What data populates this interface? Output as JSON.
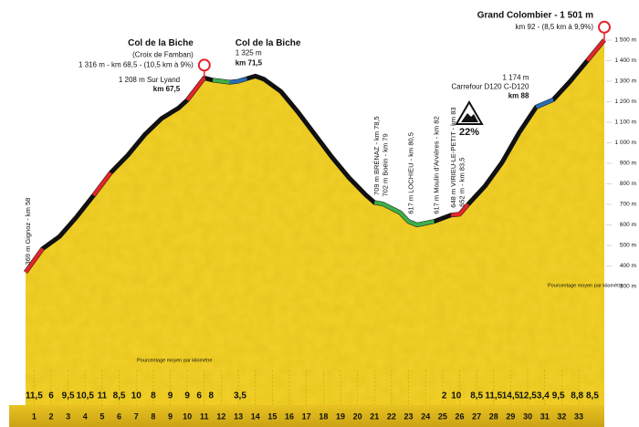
{
  "chart_data": {
    "type": "area",
    "color": "#f4d12a",
    "ridge_color": "#111111",
    "x": [
      0,
      1,
      2,
      3,
      4,
      5,
      6,
      7,
      8,
      9,
      9.5,
      10.5,
      11,
      12,
      12.5,
      13.5,
      14,
      15,
      16,
      17,
      18,
      19,
      20,
      20.5,
      21,
      22,
      22.5,
      23,
      24,
      25,
      25.5,
      26,
      27,
      28,
      29,
      30,
      31,
      32,
      33,
      34
    ],
    "values": [
      369,
      484,
      544,
      639,
      744,
      854,
      939,
      1039,
      1119,
      1170,
      1208,
      1316,
      1305,
      1295,
      1300,
      1325,
      1310,
      1250,
      1150,
      1040,
      930,
      830,
      745,
      709,
      702,
      660,
      617,
      600,
      617,
      648,
      652,
      700,
      790,
      905,
      1050,
      1174,
      1210,
      1300,
      1400,
      1501
    ],
    "xlim": [
      0,
      34
    ],
    "ylim": [
      300,
      1500
    ],
    "yticks": [
      {
        "value": 1500,
        "label": "1 500 m"
      },
      {
        "value": 1400,
        "label": "1 400 m"
      },
      {
        "value": 1300,
        "label": "1 300 m"
      },
      {
        "value": 1200,
        "label": "1 200 m"
      },
      {
        "value": 1100,
        "label": "1 100 m"
      },
      {
        "value": 1000,
        "label": "1 000 m"
      },
      {
        "value": 900,
        "label": "900 m"
      },
      {
        "value": 800,
        "label": "800 m"
      },
      {
        "value": 700,
        "label": "700 m"
      },
      {
        "value": 600,
        "label": "600 m"
      },
      {
        "value": 500,
        "label": "500 m"
      },
      {
        "value": 400,
        "label": "400 m"
      },
      {
        "value": 300,
        "label": "300 m"
      }
    ],
    "xticks": [
      {
        "value": 0.5,
        "label": "1"
      },
      {
        "value": 1.5,
        "label": "2"
      },
      {
        "value": 2.5,
        "label": "3"
      },
      {
        "value": 3.5,
        "label": "4"
      },
      {
        "value": 4.5,
        "label": "5"
      },
      {
        "value": 5.5,
        "label": "6"
      },
      {
        "value": 6.5,
        "label": "7"
      },
      {
        "value": 7.5,
        "label": "8"
      },
      {
        "value": 8.5,
        "label": "9"
      },
      {
        "value": 9.5,
        "label": "10"
      },
      {
        "value": 10.5,
        "label": "11"
      },
      {
        "value": 11.5,
        "label": "12"
      },
      {
        "value": 12.5,
        "label": "13"
      },
      {
        "value": 13.5,
        "label": "14"
      },
      {
        "value": 14.5,
        "label": "15"
      },
      {
        "value": 15.5,
        "label": "16"
      },
      {
        "value": 16.5,
        "label": "17"
      },
      {
        "value": 17.5,
        "label": "18"
      },
      {
        "value": 18.5,
        "label": "19"
      },
      {
        "value": 19.5,
        "label": "20"
      },
      {
        "value": 20.5,
        "label": "21"
      },
      {
        "value": 21.5,
        "label": "22"
      },
      {
        "value": 22.5,
        "label": "23"
      },
      {
        "value": 23.5,
        "label": "24"
      },
      {
        "value": 24.5,
        "label": "25"
      },
      {
        "value": 25.5,
        "label": "26"
      },
      {
        "value": 26.5,
        "label": "27"
      },
      {
        "value": 27.5,
        "label": "28"
      },
      {
        "value": 28.5,
        "label": "29"
      },
      {
        "value": 29.5,
        "label": "30"
      },
      {
        "value": 30.5,
        "label": "31"
      },
      {
        "value": 31.5,
        "label": "32"
      },
      {
        "value": 32.5,
        "label": "33"
      }
    ],
    "gradients": [
      {
        "km": 0.5,
        "label": "11,5"
      },
      {
        "km": 1.5,
        "label": "6"
      },
      {
        "km": 2.5,
        "label": "9,5"
      },
      {
        "km": 3.5,
        "label": "10,5"
      },
      {
        "km": 4.5,
        "label": "11"
      },
      {
        "km": 5.5,
        "label": "8,5"
      },
      {
        "km": 6.5,
        "label": "10"
      },
      {
        "km": 7.5,
        "label": "8"
      },
      {
        "km": 8.5,
        "label": "9"
      },
      {
        "km": 9.5,
        "label": "9"
      },
      {
        "km": 10.2,
        "label": "6"
      },
      {
        "km": 10.9,
        "label": "8"
      },
      {
        "km": 12.6,
        "label": "3,5"
      },
      {
        "km": 24.6,
        "label": "2"
      },
      {
        "km": 25.3,
        "label": "10"
      },
      {
        "km": 26.5,
        "label": "8,5"
      },
      {
        "km": 27.5,
        "label": "11,5"
      },
      {
        "km": 28.5,
        "label": "14,5"
      },
      {
        "km": 29.5,
        "label": "12,5"
      },
      {
        "km": 30.4,
        "label": "3,4"
      },
      {
        "km": 31.3,
        "label": "9,5"
      },
      {
        "km": 32.4,
        "label": "8,8"
      },
      {
        "km": 33.3,
        "label": "8,5"
      }
    ],
    "ridge_segments": [
      {
        "from": 0,
        "to": 1,
        "color": "#e3262b"
      },
      {
        "from": 4,
        "to": 5,
        "color": "#e3262b"
      },
      {
        "from": 9.5,
        "to": 10.5,
        "color": "#e3262b"
      },
      {
        "from": 11,
        "to": 12,
        "color": "#3fae49"
      },
      {
        "from": 12,
        "to": 13,
        "color": "#2a6db5"
      },
      {
        "from": 20.5,
        "to": 24,
        "color": "#3fae49"
      },
      {
        "from": 25,
        "to": 26,
        "color": "#e3262b"
      },
      {
        "from": 30,
        "to": 31,
        "color": "#2a6db5"
      },
      {
        "from": 33,
        "to": 34,
        "color": "#e3262b"
      }
    ],
    "annotations": [
      {
        "x": 0,
        "y": 369,
        "kind": "vertical",
        "lines": [
          "369 m  Gignoz - km 58"
        ]
      },
      {
        "x": 9.5,
        "y": 1208,
        "kind": "left",
        "lines": [
          "1 208 m Sur Lyand",
          "km 67,5"
        ]
      },
      {
        "x": 10.5,
        "y": 1316,
        "kind": "summit-left",
        "lines": [
          "Col de la Biche",
          "(Croix de Famban)",
          "1 316 m - km 68,5 - (10,5 km à 9%)"
        ]
      },
      {
        "x": 13.5,
        "y": 1325,
        "kind": "right",
        "lines": [
          "Col de la Biche",
          "1 325 m",
          "km 71,5"
        ]
      },
      {
        "x": 20.5,
        "y": 709,
        "kind": "vertical",
        "lines": [
          "709 m  BRÉNAZ - km 78,5"
        ]
      },
      {
        "x": 21,
        "y": 702,
        "kind": "vertical",
        "lines": [
          "702 m  Boëin - km 79"
        ]
      },
      {
        "x": 22.5,
        "y": 617,
        "kind": "vertical",
        "lines": [
          "617 m  LOCHIEU - km 80,5"
        ]
      },
      {
        "x": 24,
        "y": 617,
        "kind": "vertical",
        "lines": [
          "617 m  Moulin d'Arvières - km 82"
        ]
      },
      {
        "x": 25,
        "y": 648,
        "kind": "vertical",
        "lines": [
          "648 m  VIRIEU-LE-PETIT - km 83"
        ]
      },
      {
        "x": 25.5,
        "y": 652,
        "kind": "vertical",
        "lines": [
          "652 m - km 83,5"
        ]
      },
      {
        "x": 30,
        "y": 1174,
        "kind": "left",
        "lines": [
          "1 174 m",
          "Carrefour D120 C-D120",
          "km 88"
        ]
      },
      {
        "x": 34,
        "y": 1501,
        "kind": "summit-left",
        "lines": [
          "Grand Colombier - 1 501 m",
          "km 92 - (8,5 km à 9,9%)"
        ]
      }
    ],
    "sign_label": "22%",
    "gradient_caption": "Pourcentage moyen par kilomètre"
  }
}
